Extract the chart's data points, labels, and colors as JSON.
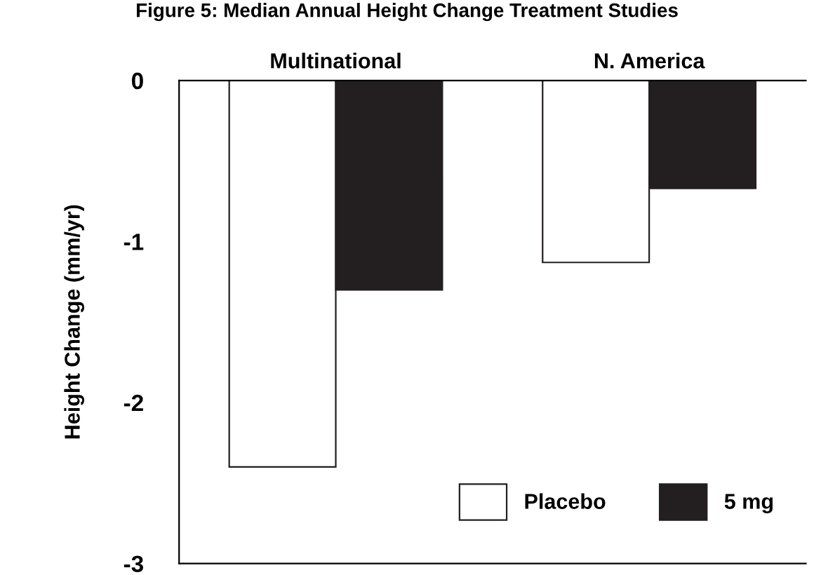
{
  "chart_data": {
    "type": "bar",
    "title": "Figure 5: Median Annual Height Change Treatment Studies",
    "ylabel": "Height Change (mm/yr)",
    "categories": [
      "Multinational",
      "N. America"
    ],
    "series": [
      {
        "name": "Placebo",
        "color": "#ffffff",
        "values": [
          -2.4,
          -1.13
        ]
      },
      {
        "name": "5 mg",
        "color": "#231f20",
        "values": [
          -1.3,
          -0.67
        ]
      }
    ],
    "ylim": [
      -3,
      0
    ],
    "yticks": [
      {
        "value": -3,
        "label": "-3"
      },
      {
        "value": -2,
        "label": "-2"
      },
      {
        "value": -1,
        "label": "-1"
      },
      0
    ],
    "grid": false,
    "legend": "bottom right"
  }
}
